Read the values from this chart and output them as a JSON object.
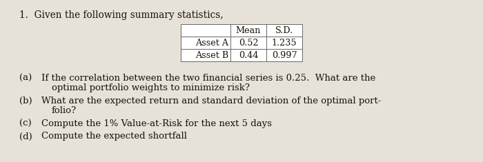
{
  "bg_color": "#e6e2d8",
  "title_text": "1.  Given the following summary statistics,",
  "table_headers": [
    "",
    "Mean",
    "S.D."
  ],
  "table_rows": [
    [
      "Asset A",
      "0.52",
      "1.235"
    ],
    [
      "Asset B",
      "0.44",
      "0.997"
    ]
  ],
  "questions": [
    {
      "label": "(a)",
      "line1": "If the correlation between the two financial series is 0.25.  What are the",
      "line2": "optimal portfolio weights to minimize risk?"
    },
    {
      "label": "(b)",
      "line1": "What are the expected return and standard deviation of the optimal port-",
      "line2": "folio?"
    },
    {
      "label": "(c)",
      "line1": "Compute the 1% Value-at-Risk for the next 5 days",
      "line2": null
    },
    {
      "label": "(d)",
      "line1": "Compute the expected shortfall",
      "line2": null
    }
  ],
  "font_color": "#1a1208",
  "title_fontsize": 9.8,
  "table_fontsize": 9.2,
  "q_fontsize": 9.5
}
